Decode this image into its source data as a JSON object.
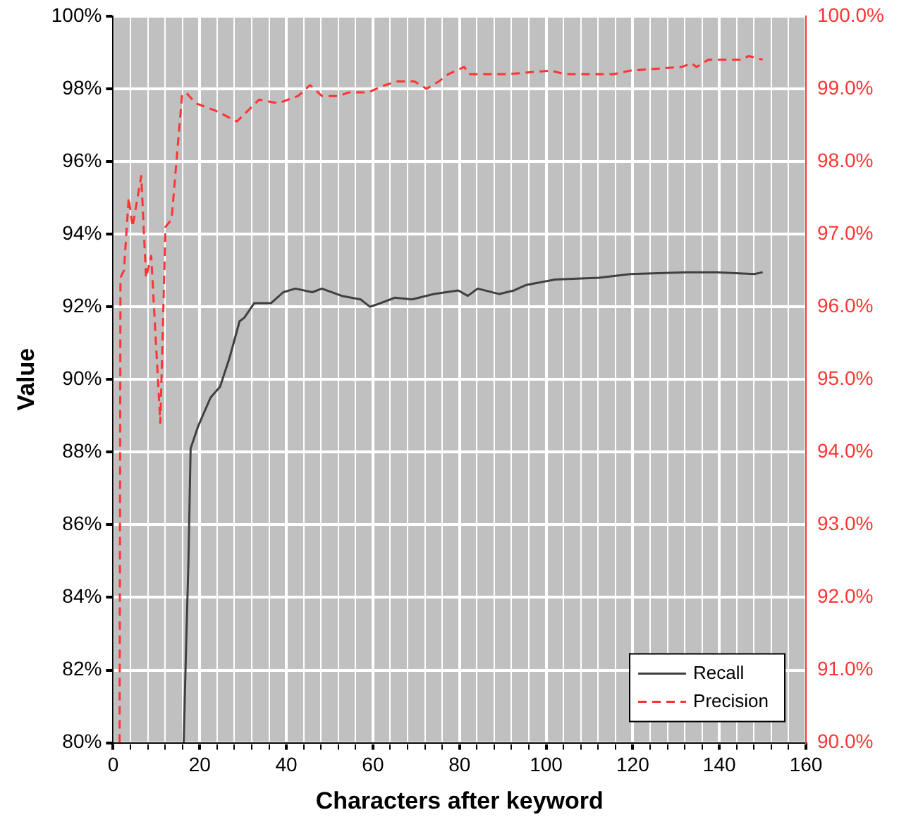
{
  "chart_data": {
    "type": "line",
    "xlabel": "Characters after keyword",
    "ylabel": "Value",
    "grid": true,
    "legend": "bottom right",
    "marker": "none",
    "xlim": [
      0,
      160
    ],
    "xticks": [
      0,
      {
        "value": 4,
        "label": null
      },
      {
        "value": 8,
        "label": null
      },
      {
        "value": 12,
        "label": null
      },
      {
        "value": 16,
        "label": null
      },
      20,
      {
        "value": 24,
        "label": null
      },
      {
        "value": 28,
        "label": null
      },
      {
        "value": 32,
        "label": null
      },
      {
        "value": 36,
        "label": null
      },
      40,
      {
        "value": 44,
        "label": null
      },
      {
        "value": 48,
        "label": null
      },
      {
        "value": 52,
        "label": null
      },
      {
        "value": 56,
        "label": null
      },
      60,
      {
        "value": 64,
        "label": null
      },
      {
        "value": 68,
        "label": null
      },
      {
        "value": 72,
        "label": null
      },
      {
        "value": 76,
        "label": null
      },
      80,
      {
        "value": 84,
        "label": null
      },
      {
        "value": 88,
        "label": null
      },
      {
        "value": 92,
        "label": null
      },
      {
        "value": 96,
        "label": null
      },
      100,
      {
        "value": 104,
        "label": null
      },
      {
        "value": 108,
        "label": null
      },
      {
        "value": 112,
        "label": null
      },
      {
        "value": 116,
        "label": null
      },
      120,
      {
        "value": 124,
        "label": null
      },
      {
        "value": 128,
        "label": null
      },
      {
        "value": 132,
        "label": null
      },
      {
        "value": 136,
        "label": null
      },
      140,
      {
        "value": 144,
        "label": null
      },
      {
        "value": 148,
        "label": null
      },
      {
        "value": 152,
        "label": null
      },
      {
        "value": 156,
        "label": null
      },
      160
    ],
    "ylim": [
      80,
      100
    ],
    "yticks": [
      {
        "value": 80,
        "label": "80%"
      },
      {
        "value": 82,
        "label": "82%"
      },
      {
        "value": 84,
        "label": "84%"
      },
      {
        "value": 86,
        "label": "86%"
      },
      {
        "value": 88,
        "label": "88%"
      },
      {
        "value": 90,
        "label": "90%"
      },
      {
        "value": 92,
        "label": "92%"
      },
      {
        "value": 94,
        "label": "94%"
      },
      {
        "value": 96,
        "label": "96%"
      },
      {
        "value": 98,
        "label": "98%"
      },
      {
        "value": 100,
        "label": "100%"
      }
    ],
    "y2lim": [
      90,
      100
    ],
    "y2ticks": [
      {
        "value": 90,
        "label": "90.0%"
      },
      {
        "value": 91,
        "label": "91.0%"
      },
      {
        "value": 92,
        "label": "92.0%"
      },
      {
        "value": 93,
        "label": "93.0%"
      },
      {
        "value": 94,
        "label": "94.0%"
      },
      {
        "value": 95,
        "label": "95.0%"
      },
      {
        "value": 96,
        "label": "96.0%"
      },
      {
        "value": 97,
        "label": "97.0%"
      },
      {
        "value": 98,
        "label": "98.0%"
      },
      {
        "value": 99,
        "label": "99.0%"
      },
      {
        "value": 100,
        "label": "100.0%"
      }
    ],
    "series": [
      {
        "name": "Recall",
        "color": "#404040",
        "line_style": "solid",
        "x": [
          16.3,
          16.8,
          17.4,
          17.9,
          19.6,
          22.5,
          24.7,
          26.9,
          29.2,
          30.3,
          32.6,
          36.5,
          39.3,
          42.1,
          46,
          48.2,
          52.8,
          57.2,
          59.3,
          60.6,
          65.1,
          69,
          74.1,
          79.7,
          81.9,
          84.2,
          89.2,
          92.6,
          95.4,
          102.1,
          112.2,
          119.5,
          132.4,
          139.2,
          148.1,
          150
        ],
        "values": [
          80,
          82.4,
          85,
          88.1,
          88.7,
          89.5,
          89.8,
          90.6,
          91.6,
          91.7,
          92.1,
          92.1,
          92.4,
          92.5,
          92.4,
          92.5,
          92.3,
          92.2,
          92,
          92.05,
          92.25,
          92.2,
          92.35,
          92.45,
          92.3,
          92.5,
          92.35,
          92.45,
          92.6,
          92.75,
          92.8,
          92.9,
          92.95,
          92.95,
          92.9,
          92.95
        ]
      },
      {
        "name": "Precision",
        "color": "#ff3333",
        "line_style": "dashed",
        "axis": "y2",
        "x": [
          1.5,
          1.7,
          2.5,
          3.6,
          4.5,
          6.5,
          7.6,
          8.8,
          10.9,
          12.1,
          13.5,
          15.9,
          16.8,
          19.1,
          23.6,
          28.6,
          33.7,
          38.1,
          42.7,
          45.5,
          48.2,
          52.2,
          54.4,
          58.9,
          62.8,
          65.7,
          69.6,
          72.4,
          75.2,
          77.4,
          81.1,
          82.2,
          84.7,
          90.9,
          101,
          104.4,
          115.6,
          119.5,
          131.3,
          133.6,
          134.7,
          137.5,
          144.8,
          146.8,
          150
        ],
        "values": [
          90,
          96.4,
          96.5,
          97.5,
          97.1,
          97.8,
          96.4,
          96.7,
          94.4,
          97.1,
          97.2,
          98.9,
          98.95,
          98.8,
          98.7,
          98.55,
          98.85,
          98.8,
          98.9,
          99.05,
          98.9,
          98.9,
          98.95,
          98.95,
          99.05,
          99.1,
          99.1,
          99.0,
          99.1,
          99.2,
          99.3,
          99.2,
          99.2,
          99.2,
          99.25,
          99.2,
          99.2,
          99.25,
          99.3,
          99.35,
          99.3,
          99.4,
          99.4,
          99.45,
          99.4
        ]
      }
    ]
  }
}
